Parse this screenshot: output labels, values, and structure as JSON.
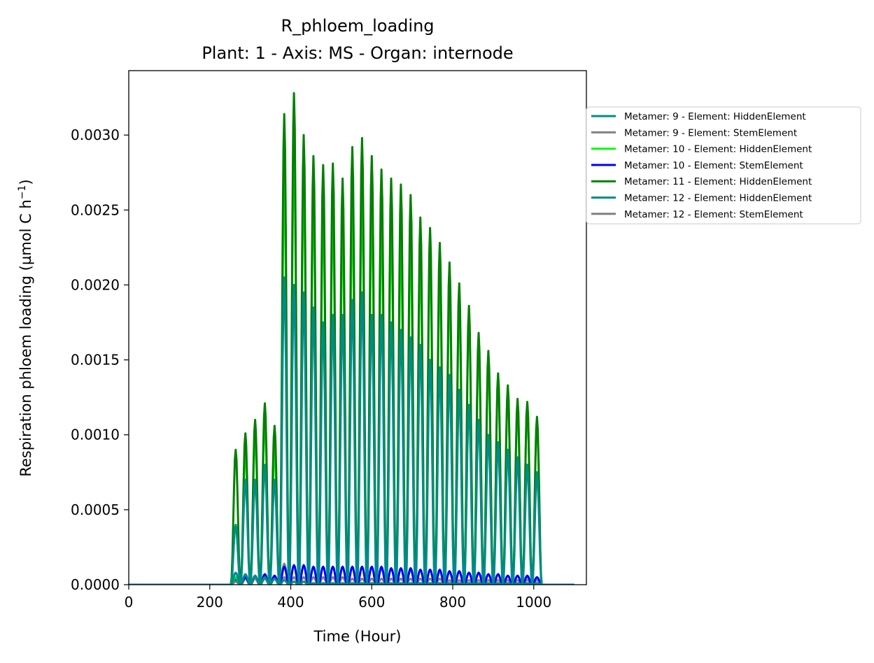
{
  "chart_data": {
    "type": "line",
    "title": "R_phloem_loading",
    "subtitle": "Plant: 1 - Axis: MS - Organ: internode",
    "xlabel": "Time (Hour)",
    "ylabel": "Respiration phloem loading (µmol C h",
    "ylabel_superscript": "−1",
    "ylabel_close": ")",
    "xlim": [
      0,
      1130
    ],
    "ylim": [
      0,
      0.00343
    ],
    "x_ticks": [
      0,
      200,
      400,
      600,
      800,
      1000
    ],
    "y_ticks": [
      0,
      0.0005,
      0.001,
      0.0015,
      0.002,
      0.0025,
      0.003
    ],
    "x_tick_labels": [
      "0",
      "200",
      "400",
      "600",
      "800",
      "1000"
    ],
    "y_tick_labels": [
      "0.0000",
      "0.0005",
      "0.0010",
      "0.0015",
      "0.0020",
      "0.0025",
      "0.0030"
    ],
    "grid": false,
    "legend_position": "outside-right",
    "cycle": {
      "start": 252,
      "period": 24,
      "count": 32,
      "end": 1100
    },
    "series": [
      {
        "name": "Metamer: 9 - Element: HiddenElement",
        "color": "#008b8b",
        "values": [
          8e-05,
          7e-05,
          6e-05,
          5e-05,
          4e-05,
          3e-05,
          2e-05,
          2e-05,
          1e-05,
          1e-05,
          1e-05,
          1e-05,
          1e-05,
          1e-05,
          1e-05,
          1e-05,
          1e-05,
          1e-05,
          1e-05,
          1e-05,
          1e-05,
          1e-05,
          1e-05,
          1e-05,
          1e-05,
          1e-05,
          1e-05,
          1e-05,
          1e-05,
          1e-05,
          1e-05,
          1e-05
        ]
      },
      {
        "name": "Metamer: 9 - Element: StemElement",
        "color": "#808080",
        "values": [
          3e-05,
          4e-05,
          4e-05,
          4e-05,
          4e-05,
          5e-05,
          5e-05,
          5e-05,
          5e-05,
          5e-05,
          5e-05,
          5e-05,
          4e-05,
          4e-05,
          4e-05,
          4e-05,
          4e-05,
          4e-05,
          4e-05,
          4e-05,
          4e-05,
          4e-05,
          3e-05,
          3e-05,
          3e-05,
          3e-05,
          3e-05,
          3e-05,
          3e-05,
          3e-05,
          3e-05,
          3e-05
        ]
      },
      {
        "name": "Metamer: 10 - Element: HiddenElement",
        "color": "#00ff00",
        "values": [
          5e-05,
          0.0009,
          0.001,
          0.0011,
          0.0009,
          0.0027,
          0.0029,
          0.0027,
          0.0026,
          0.0025,
          0.0025,
          0.0024,
          0.0025,
          0.0026,
          0.0025,
          0.0024,
          0.0024,
          0.0023,
          0.0023,
          0.0022,
          0.0022,
          0.0021,
          0.002,
          0.0019,
          0.0018,
          0.0016,
          0.0015,
          0.0014,
          0.0013,
          0.0012,
          0.0012,
          0.0011
        ]
      },
      {
        "name": "Metamer: 10 - Element: StemElement",
        "color": "#0000ff",
        "values": [
          4e-05,
          5e-05,
          6e-05,
          7e-05,
          6e-05,
          0.00012,
          0.00013,
          0.00013,
          0.00012,
          0.00012,
          0.00012,
          0.00012,
          0.00012,
          0.00012,
          0.00012,
          0.00012,
          0.00011,
          0.00011,
          0.00011,
          0.0001,
          0.0001,
          0.0001,
          9e-05,
          9e-05,
          8e-05,
          8e-05,
          7e-05,
          7e-05,
          6e-05,
          6e-05,
          6e-05,
          5e-05
        ]
      },
      {
        "name": "Metamer: 11 - Element: HiddenElement",
        "color": "#008000",
        "values": [
          0.0009,
          0.00101,
          0.0011,
          0.00121,
          0.00106,
          0.00314,
          0.00328,
          0.003,
          0.00286,
          0.0028,
          0.00281,
          0.00271,
          0.00292,
          0.00298,
          0.00286,
          0.00277,
          0.00271,
          0.00267,
          0.0026,
          0.00245,
          0.00238,
          0.00228,
          0.00215,
          0.00201,
          0.00186,
          0.00168,
          0.00156,
          0.00141,
          0.00133,
          0.00124,
          0.00122,
          0.00112
        ]
      },
      {
        "name": "Metamer: 12 - Element: HiddenElement",
        "color": "#008b8b",
        "values": [
          0.0004,
          0.0007,
          0.0007,
          0.0008,
          0.0007,
          0.00205,
          0.002,
          0.00195,
          0.00185,
          0.00175,
          0.0018,
          0.0018,
          0.0019,
          0.00195,
          0.0018,
          0.0018,
          0.00175,
          0.0017,
          0.00165,
          0.0016,
          0.0015,
          0.00145,
          0.0014,
          0.0013,
          0.0012,
          0.0011,
          0.001,
          0.00095,
          0.0009,
          0.00085,
          0.0008,
          0.00075
        ]
      },
      {
        "name": "Metamer: 12 - Element: StemElement",
        "color": "#808080",
        "values": [
          2e-05,
          4e-05,
          5e-05,
          5e-05,
          5e-05,
          0.00014,
          0.00013,
          0.00013,
          0.00012,
          0.00012,
          0.00012,
          0.00012,
          0.00012,
          0.00012,
          0.00012,
          0.00011,
          0.00011,
          0.00011,
          0.0001,
          0.0001,
          0.0001,
          9e-05,
          9e-05,
          9e-05,
          8e-05,
          8e-05,
          7e-05,
          7e-05,
          6e-05,
          6e-05,
          5e-05,
          5e-05
        ]
      }
    ]
  }
}
